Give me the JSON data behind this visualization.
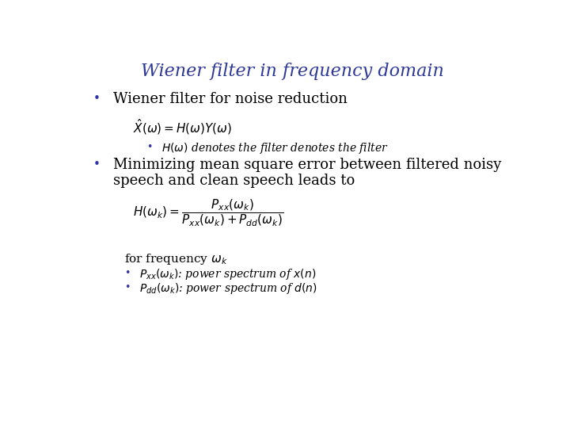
{
  "title": "Wiener filter in frequency domain",
  "title_color": "#2E3899",
  "title_fontsize": 16,
  "background_color": "#ffffff",
  "bullet_color": "#3333aa",
  "bullet1_text": "Wiener filter for noise reduction",
  "formula1": "$\\hat{X}(\\omega) = H(\\omega)Y(\\omega)$",
  "sub_bullet_text": "$H(\\omega)$ denotes the filter",
  "bullet2_line1": "Minimizing mean square error between filtered noisy",
  "bullet2_line2": "speech and clean speech leads to",
  "formula2": "$H(\\omega_k) = \\dfrac{P_{xx}(\\omega_k)}{P_{xx}(\\omega_k) + P_{dd}(\\omega_k)}$",
  "freq_text": "for frequency $\\omega_k$",
  "bullet3_text": "$P_{xx}(\\omega_k)$: power spectrum of $x(n)$",
  "bullet4_text": "$P_{dd}(\\omega_k)$: power spectrum of $d(n)$",
  "text_color": "#000000"
}
